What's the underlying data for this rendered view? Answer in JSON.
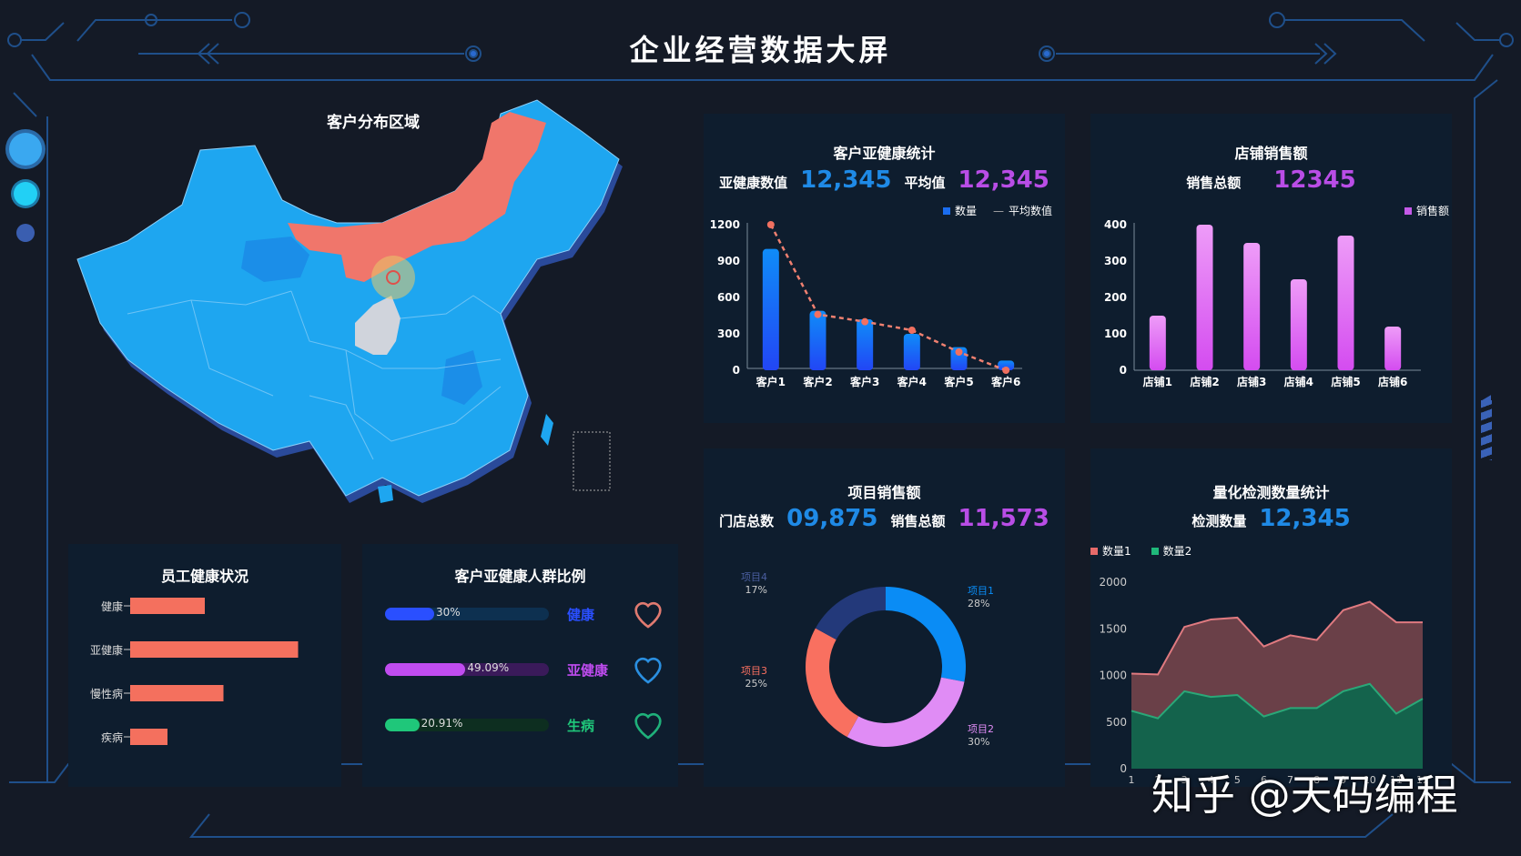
{
  "header": {
    "title": "企业经营数据大屏"
  },
  "map": {
    "title": "客户分布区域"
  },
  "sub_health": {
    "title": "客户亚健康统计",
    "label1": "亚健康数值",
    "value1": "12,345",
    "label2": "平均值",
    "value2": "12,345",
    "legend": [
      "数量",
      "平均数值"
    ]
  },
  "store_sales": {
    "title": "店铺销售额",
    "label": "销售总额",
    "value": "12345",
    "legend": "销售额"
  },
  "project_sales": {
    "title": "项目销售额",
    "label1": "门店总数",
    "value1": "09,875",
    "label2": "销售总额",
    "value2": "11,573"
  },
  "detection": {
    "title": "量化检测数量统计",
    "label": "检测数量",
    "value": "12,345",
    "legend": [
      "数量1",
      "数量2"
    ]
  },
  "employee": {
    "title": "员工健康状况"
  },
  "ratio": {
    "title": "客户亚健康人群比例",
    "items": [
      {
        "label": "健康",
        "pct": "30%",
        "color": "#2a4fff"
      },
      {
        "label": "亚健康",
        "pct": "49.09%",
        "color": "#c04cf0"
      },
      {
        "label": "生病",
        "pct": "20.91%",
        "color": "#1fc77a"
      }
    ]
  },
  "watermark": "知乎 @天码编程",
  "chart_data": [
    {
      "type": "bar",
      "title": "客户亚健康统计",
      "categories": [
        "客户1",
        "客户2",
        "客户3",
        "客户4",
        "客户5",
        "客户6"
      ],
      "series": [
        {
          "name": "数量",
          "type": "bar",
          "values": [
            1000,
            490,
            420,
            300,
            190,
            80
          ]
        },
        {
          "name": "平均数值",
          "type": "line",
          "values": [
            1200,
            460,
            400,
            330,
            150,
            0
          ]
        }
      ],
      "yticks": [
        0,
        300,
        600,
        900,
        1200
      ],
      "ylim": [
        0,
        1200
      ]
    },
    {
      "type": "bar",
      "title": "店铺销售额",
      "categories": [
        "店铺1",
        "店铺2",
        "店铺3",
        "店铺4",
        "店铺5",
        "店铺6"
      ],
      "series": [
        {
          "name": "销售额",
          "values": [
            150,
            400,
            350,
            250,
            370,
            120
          ]
        }
      ],
      "yticks": [
        0,
        100,
        200,
        300,
        400
      ],
      "ylim": [
        0,
        400
      ]
    },
    {
      "type": "pie",
      "title": "项目销售额",
      "labels": [
        "项目1",
        "项目2",
        "项目3",
        "项目4"
      ],
      "values": [
        28,
        30,
        25,
        17
      ],
      "colors": [
        "#0a8cf5",
        "#e08cf5",
        "#f97060",
        "#23397a"
      ]
    },
    {
      "type": "area",
      "title": "量化检测数量统计",
      "x": [
        1,
        2,
        3,
        4,
        5,
        6,
        7,
        8,
        9,
        10,
        11,
        12
      ],
      "series": [
        {
          "name": "数量1",
          "values": [
            1020,
            1010,
            1520,
            1600,
            1620,
            1310,
            1430,
            1380,
            1700,
            1790,
            1570,
            1570
          ]
        },
        {
          "name": "数量2",
          "values": [
            620,
            540,
            830,
            770,
            790,
            560,
            650,
            650,
            830,
            910,
            590,
            750
          ]
        }
      ],
      "yticks": [
        0,
        500,
        1000,
        1500,
        2000
      ],
      "ylim": [
        0,
        2000
      ]
    },
    {
      "type": "bar",
      "title": "员工健康状况",
      "orientation": "horizontal",
      "categories": [
        "健康",
        "亚健康",
        "慢性病",
        "疾病"
      ],
      "values": [
        40,
        90,
        50,
        20
      ]
    },
    {
      "type": "bar",
      "title": "客户亚健康人群比例",
      "orientation": "horizontal",
      "categories": [
        "健康",
        "亚健康",
        "生病"
      ],
      "values": [
        30,
        49.09,
        20.91
      ]
    }
  ]
}
